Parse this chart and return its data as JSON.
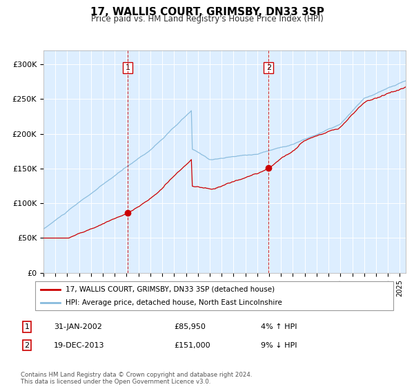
{
  "title": "17, WALLIS COURT, GRIMSBY, DN33 3SP",
  "subtitle": "Price paid vs. HM Land Registry's House Price Index (HPI)",
  "sale1_date_label": "31-JAN-2002",
  "sale1_price": 85950,
  "sale1_hpi_label": "4% ↑ HPI",
  "sale1_year": 2002.08,
  "sale2_date_label": "19-DEC-2013",
  "sale2_price": 151000,
  "sale2_hpi_label": "9% ↓ HPI",
  "sale2_year": 2013.96,
  "legend_red": "17, WALLIS COURT, GRIMSBY, DN33 3SP (detached house)",
  "legend_blue": "HPI: Average price, detached house, North East Lincolnshire",
  "footer": "Contains HM Land Registry data © Crown copyright and database right 2024.\nThis data is licensed under the Open Government Licence v3.0.",
  "ylim": [
    0,
    320000
  ],
  "start_year": 1995,
  "end_year": 2025,
  "background_color": "#ffffff",
  "plot_bg_color": "#ddeeff",
  "grid_color": "#ffffff",
  "red_line_color": "#cc0000",
  "blue_line_color": "#88bbdd",
  "vline_color": "#cc0000",
  "marker_color": "#cc0000",
  "title_fontsize": 11,
  "subtitle_fontsize": 8.5,
  "tick_fontsize": 7,
  "ytick_fontsize": 8
}
